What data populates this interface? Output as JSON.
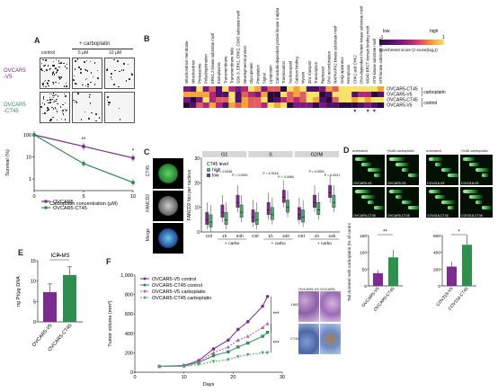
{
  "labels": {
    "A": "A",
    "B": "B",
    "C": "C",
    "D": "D",
    "E": "E",
    "F": "F"
  },
  "panelA": {
    "treatment_header": "+ carboplatin",
    "col_control": "control",
    "col_5": "5 μM",
    "col_10": "10 μM",
    "row1_line1": "OVCAR5",
    "row1_line2": "-V5",
    "row2_line1": "OVCAR5",
    "row2_line2": "-CT45",
    "chart": {
      "ylabel": "Survival (%)",
      "xlabel": "Carboplatin concentration (μM)",
      "xticks": [
        "0",
        "5",
        "10"
      ],
      "yticks": [
        "100",
        "10",
        "1"
      ],
      "sig": [
        "**",
        "*"
      ],
      "legend": [
        "OVCAR5",
        "OVCAR5-CT45"
      ]
    }
  },
  "panelB": {
    "legend_low": "low",
    "legend_high": "high",
    "legend_min": "-1",
    "legend_max": "1",
    "legend_title": "Enrichment score (z-score(log₂))",
    "rows": [
      "OVCAR5-CT45",
      "OVCAR5-V5",
      "OVCAR5-CT45",
      "OVCAR5-V5"
    ],
    "group1": "carboplatin",
    "group2": "control",
    "categories": [
      "Mitochondrion membrane",
      "Mitochondrion",
      "Proteasome",
      "Polyubiquitination",
      "ERK1,2 kinase substrate motif",
      "Endoplasmic",
      "Transmembrane",
      "Transmembrane helix",
      "GSK-3, ERK1, ERK2, CDK5 substrate motif",
      "Developmental protein",
      "Glycoprotein",
      "Prenylation",
      "Signal",
      "Lipoprotein",
      "Calmodulin-dependent protein kinase II alpha",
      "Translocation",
      "Nucleocapsid",
      "Calcium binding",
      "Myosin",
      "Zinc transport",
      "Transcription",
      "Repressor",
      "DNA recombination",
      "MAPKAPK2 kinase substrate motif",
      "Golgi apparatus",
      "Ferroptosis",
      "CHK1 and CHK2",
      "DNA-dependent Protein kinase substrate motif",
      "WD40 BRCT domain binding motif",
      "ATM kinase substrate motif",
      "ATR kinase substrate motif"
    ]
  },
  "panelC": {
    "img_labels": [
      "CT45",
      "FANCD2",
      "Merge"
    ],
    "phases": [
      "G1",
      "S",
      "G2/M"
    ],
    "legend_title": "CT45 level",
    "legend_high": "high",
    "legend_low": "low",
    "ylabel": "FANCD2 foci per nucleus",
    "yticks": [
      "30",
      "20",
      "10",
      "0"
    ],
    "xticks": [
      "Ctrl",
      "1h",
      "24h",
      "Ctrl",
      "1h",
      "24h",
      "Ctrl",
      "1h",
      "24h"
    ],
    "carbo": [
      "+ carbo",
      "+ carbo",
      "+ carbo"
    ],
    "pvals": [
      "P = 0.0048",
      "P = 0.0092",
      "P = 0.0118",
      "P = 0.0084",
      "P = 0.0001",
      "P = 0.0021"
    ]
  },
  "panelD": {
    "img_labels": [
      "untreated",
      "+5uM carboplatin",
      "untreated",
      "+2uM carboplatin",
      "OVCAR5-V5",
      "OVCAR5-V5",
      "COV318-V5",
      "COV318-V5",
      "OVCAR5-CT45",
      "OVCAR5-CT45",
      "COV318-CT45",
      "COV318-CT45"
    ],
    "ylabel": "Tail moment with carboplatin (% of control)",
    "chart1": {
      "yticks": [
        "150",
        "100",
        "50",
        "0"
      ],
      "x": [
        "OVCAR5-V5",
        "OVCAR5-CT45"
      ],
      "sig": "**"
    },
    "chart2": {
      "yticks": [
        "600",
        "400",
        "200",
        "0"
      ],
      "x": [
        "COV318-V5",
        "COV318-CT45"
      ],
      "sig": "*"
    }
  },
  "panelE": {
    "title": "ICP-MS",
    "ylabel": "ng Pt/μg DNA",
    "yticks": [
      "15",
      "10",
      "5",
      "0"
    ],
    "x": [
      "OVCAR5-V5",
      "OVCAR5-CT45"
    ],
    "sig": "**"
  },
  "panelF": {
    "ylabel": "Tumor volume (mm³)",
    "xlabel": "Days",
    "yticks": [
      "1,000",
      "800",
      "600",
      "400",
      "200",
      "0"
    ],
    "xticks": [
      "0",
      "10",
      "20",
      "30"
    ],
    "legend": [
      "OVCAR5-V5 control",
      "OVCAR5-CT45 control",
      "OVCAR5-V5 carboplatin",
      "OVCAR5-CT45 carboplatin"
    ],
    "sig": [
      "***",
      "***"
    ],
    "ihc_labels": [
      "OVCAR5-V5",
      "OVCAR5-CT45",
      "H&E",
      "CT45"
    ]
  },
  "chart_data": [
    {
      "type": "line",
      "title": "",
      "xlabel": "Carboplatin concentration (μM)",
      "ylabel": "Survival (%)",
      "yscale": "log",
      "ylim": [
        0.3,
        100
      ],
      "x": [
        0,
        5,
        10
      ],
      "series": [
        {
          "name": "OVCAR5",
          "values": [
            100,
            30,
            9
          ],
          "color": "#7b2c8e"
        },
        {
          "name": "OVCAR5-CT45",
          "values": [
            100,
            5,
            0.7
          ],
          "color": "#2f8f4e"
        }
      ]
    },
    {
      "type": "bar",
      "title": "ICP-MS",
      "ylabel": "ng Pt/μg DNA",
      "ylim": [
        0,
        15
      ],
      "categories": [
        "OVCAR5-V5",
        "OVCAR5-CT45"
      ],
      "values": [
        7.3,
        11.5
      ],
      "colors": [
        "#7b2c8e",
        "#2f8f4e"
      ]
    },
    {
      "type": "bar",
      "ylabel": "Tail moment with carboplatin (% of control)",
      "ylim": [
        0,
        150
      ],
      "categories": [
        "OVCAR5-V5",
        "OVCAR5-CT45"
      ],
      "values": [
        38,
        85
      ],
      "colors": [
        "#7b2c8e",
        "#2f8f4e"
      ]
    },
    {
      "type": "bar",
      "ylabel": "Tail moment with carboplatin (% of control)",
      "ylim": [
        0,
        600
      ],
      "categories": [
        "COV318-V5",
        "COV318-CT45"
      ],
      "values": [
        230,
        490
      ],
      "colors": [
        "#7b2c8e",
        "#2f8f4e"
      ]
    },
    {
      "type": "line",
      "xlabel": "Days",
      "ylabel": "Tumor volume (mm³)",
      "ylim": [
        0,
        1000
      ],
      "x": [
        5,
        10,
        13,
        16,
        19,
        21,
        23,
        26,
        27
      ],
      "series": [
        {
          "name": "OVCAR5-V5 control",
          "values": [
            60,
            70,
            120,
            240,
            330,
            440,
            520,
            680,
            780
          ],
          "color": "#7b2c8e"
        },
        {
          "name": "OVCAR5-CT45 control",
          "values": [
            60,
            65,
            100,
            170,
            210,
            260,
            300,
            370,
            410
          ],
          "color": "#2f8f4e"
        },
        {
          "name": "OVCAR5-V5 carboplatin",
          "values": [
            60,
            68,
            110,
            200,
            260,
            330,
            370,
            460,
            500
          ],
          "color": "#a45cb7"
        },
        {
          "name": "OVCAR5-CT45 carboplatin",
          "values": [
            60,
            60,
            80,
            110,
            130,
            160,
            180,
            200,
            200
          ],
          "color": "#4fa86a"
        }
      ]
    }
  ]
}
